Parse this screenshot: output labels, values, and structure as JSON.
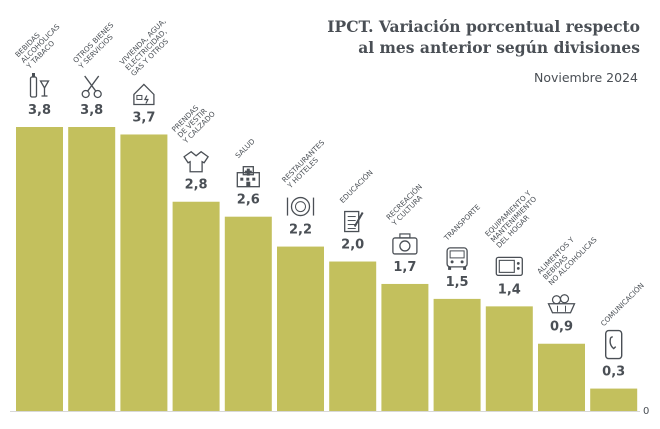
{
  "chart_data": {
    "type": "bar",
    "title": "IPCT. Variación porcentual respecto",
    "title_line2": "al mes anterior según divisiones",
    "subtitle": "Noviembre 2024",
    "categories": [
      "BEBIDAS ALCOHÓLICAS Y TABACO",
      "OTROS BIENES Y SERVICIOS",
      "VIVIENDA, AGUA, ELECTRICIDAD, GAS Y OTROS",
      "PRENDAS DE VESTIR Y CALZADO",
      "SALUD",
      "RESTAURANTES Y HOTELES",
      "EDUCACIÓN",
      "RECREACIÓN Y CULTURA",
      "TRANSPORTE",
      "EQUIPAMIENTO Y MANTENIMIENTO DEL HOGAR",
      "ALIMENTOS Y BEBIDAS NO ALCOHÓLICAS",
      "COMUNICACIÓN"
    ],
    "category_lines": [
      [
        "BEBIDAS",
        "ALCOHÓLICAS",
        "Y TABACO"
      ],
      [
        "OTROS BIENES",
        "Y SERVICIOS"
      ],
      [
        "VIVIENDA, AGUA,",
        "ELECTRICIDAD,",
        "GAS Y OTROS"
      ],
      [
        "PRENDAS",
        "DE VESTIR",
        "Y CALZADO"
      ],
      [
        "SALUD"
      ],
      [
        "RESTAURANTES",
        "Y HOTELES"
      ],
      [
        "EDUCACIÓN"
      ],
      [
        "RECREACIÓN",
        "Y CULTURA"
      ],
      [
        "TRANSPORTE"
      ],
      [
        "EQUIPAMIENTO Y",
        "MANTENIMIENTO",
        "DEL HOGAR"
      ],
      [
        "ALIMENTOS Y",
        "BEBIDAS",
        "NO ALCOHÓLICAS"
      ],
      [
        "COMUNICACIÓN"
      ]
    ],
    "values": [
      3.8,
      3.8,
      3.7,
      2.8,
      2.6,
      2.2,
      2.0,
      1.7,
      1.5,
      1.4,
      0.9,
      0.3
    ],
    "value_labels": [
      "3,8",
      "3,8",
      "3,7",
      "2,8",
      "2,6",
      "2,2",
      "2,0",
      "1,7",
      "1,5",
      "1,4",
      "0,9",
      "0,3"
    ],
    "icons": [
      "bottle-glass-icon",
      "scissors-icon",
      "house-bolt-icon",
      "shirt-icon",
      "hospital-icon",
      "plate-cutlery-icon",
      "notebook-pencil-icon",
      "camera-icon",
      "bus-icon",
      "microwave-icon",
      "basket-icon",
      "phone-icon"
    ],
    "zero_label": "0",
    "bar_color": "#c3c05d",
    "text_color": "#4a4f55",
    "ylim": [
      0,
      3.8
    ]
  }
}
